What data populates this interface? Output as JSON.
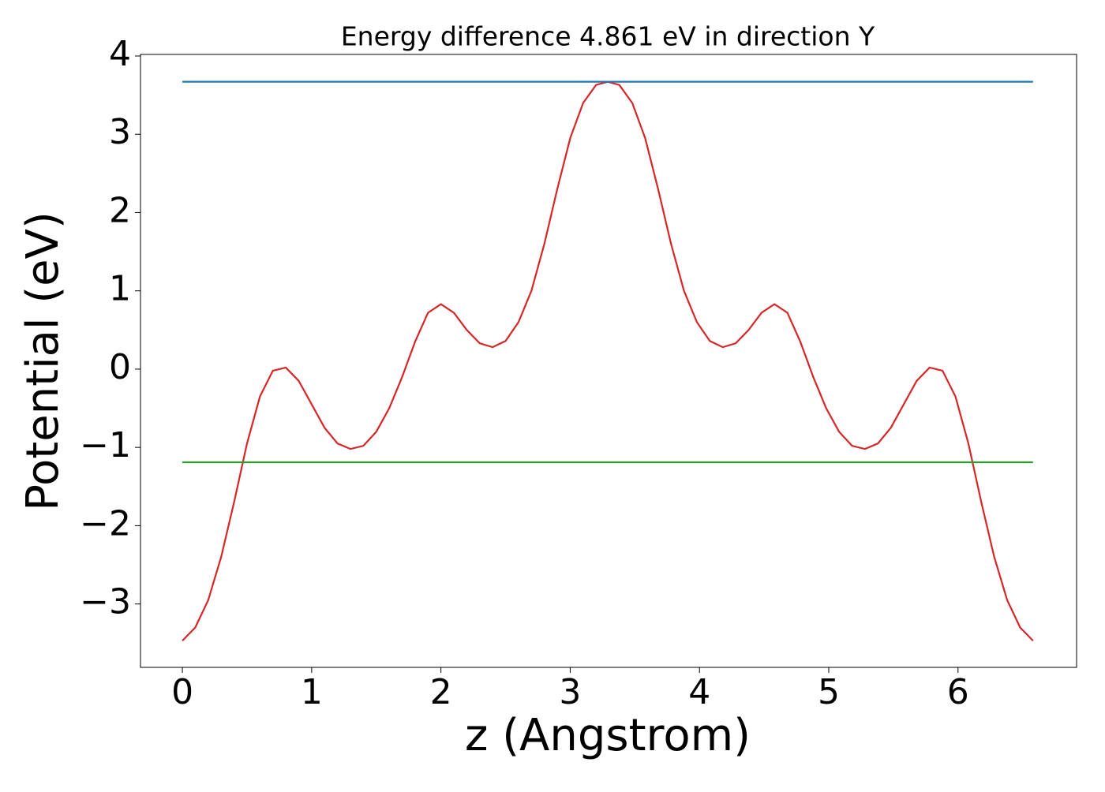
{
  "chart_data": {
    "type": "line",
    "title": "Energy difference 4.861 eV in direction Y",
    "x_label": "z (Angstrom)",
    "y_label": "Potential (eV)",
    "xlim": [
      -0.324,
      6.917
    ],
    "ylim": [
      -3.81,
      4.02
    ],
    "xticks": [
      0,
      1,
      2,
      3,
      4,
      5,
      6
    ],
    "yticks": [
      {
        "value": -3,
        "label": "−3"
      },
      {
        "value": -2,
        "label": "−2"
      },
      {
        "value": -1,
        "label": "−1"
      },
      0,
      1,
      2,
      3,
      4
    ],
    "series": [
      {
        "color": "#d62728",
        "x": [
          0,
          0.1,
          0.2,
          0.3,
          0.4,
          0.5,
          0.6,
          0.7,
          0.8,
          0.9,
          1.0,
          1.1,
          1.2,
          1.3,
          1.4,
          1.5,
          1.6,
          1.7,
          1.8,
          1.9,
          2.0,
          2.1,
          2.2,
          2.3,
          2.4,
          2.5,
          2.6,
          2.7,
          2.8,
          2.9,
          3.0,
          3.1,
          3.2,
          3.29,
          3.38,
          3.48,
          3.58,
          3.68,
          3.78,
          3.88,
          3.98,
          4.08,
          4.18,
          4.28,
          4.38,
          4.48,
          4.58,
          4.68,
          4.78,
          4.88,
          4.98,
          5.08,
          5.18,
          5.28,
          5.38,
          5.48,
          5.58,
          5.68,
          5.78,
          5.88,
          5.98,
          6.08,
          6.18,
          6.28,
          6.38,
          6.48,
          6.58
        ],
        "values": [
          -3.47,
          -3.3,
          -2.95,
          -2.4,
          -1.7,
          -0.95,
          -0.35,
          -0.02,
          0.02,
          -0.15,
          -0.45,
          -0.75,
          -0.95,
          -1.02,
          -0.98,
          -0.8,
          -0.5,
          -0.1,
          0.35,
          0.72,
          0.83,
          0.72,
          0.5,
          0.33,
          0.28,
          0.36,
          0.6,
          1.0,
          1.6,
          2.3,
          2.95,
          3.4,
          3.63,
          3.671,
          3.63,
          3.4,
          2.95,
          2.3,
          1.6,
          1.0,
          0.6,
          0.36,
          0.28,
          0.33,
          0.5,
          0.72,
          0.83,
          0.72,
          0.35,
          -0.1,
          -0.5,
          -0.8,
          -0.98,
          -1.02,
          -0.95,
          -0.75,
          -0.45,
          -0.15,
          0.02,
          -0.02,
          -0.35,
          -0.95,
          -1.7,
          -2.4,
          -2.95,
          -3.3,
          -3.47
        ]
      },
      {
        "color": "#1f77b4",
        "x": [
          0,
          6.58
        ],
        "values": [
          3.671,
          3.671
        ]
      },
      {
        "color": "#2ca02c",
        "x": [
          0,
          6.58
        ],
        "values": [
          -1.19,
          -1.19
        ]
      }
    ]
  }
}
